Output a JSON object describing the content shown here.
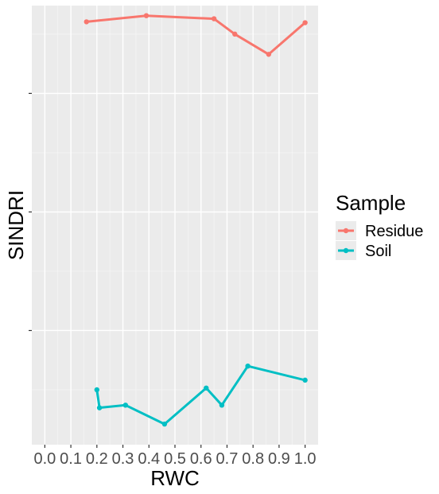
{
  "chart_data": {
    "type": "line",
    "xlabel": "RWC",
    "ylabel": "SINDRI",
    "xlim": [
      -0.05,
      1.05
    ],
    "ylim": [
      0,
      100
    ],
    "x_ticks": [
      0.0,
      0.1,
      0.2,
      0.3,
      0.4,
      0.5,
      0.6,
      0.7,
      0.8,
      0.9,
      1.0
    ],
    "x_tick_labels": [
      "0.0",
      "0.1",
      "0.2",
      "0.3",
      "0.4",
      "0.5",
      "0.6",
      "0.7",
      "0.8",
      "0.9",
      "1.0"
    ],
    "y_ticks": [
      26,
      53,
      80
    ],
    "y_tick_labels": [
      "",
      "",
      ""
    ],
    "grid": true,
    "legend_position": "right",
    "legend_title": "Sample",
    "series": [
      {
        "name": "Residue",
        "color": "#F8766D",
        "points": [
          {
            "x": 0.16,
            "y": 96.3
          },
          {
            "x": 0.39,
            "y": 97.7
          },
          {
            "x": 0.65,
            "y": 97.0
          },
          {
            "x": 0.73,
            "y": 93.5
          },
          {
            "x": 0.86,
            "y": 88.9
          },
          {
            "x": 1.0,
            "y": 96.1
          }
        ]
      },
      {
        "name": "Soil",
        "color": "#00BFC4",
        "points": [
          {
            "x": 0.2,
            "y": 12.5
          },
          {
            "x": 0.21,
            "y": 8.4
          },
          {
            "x": 0.31,
            "y": 9.0
          },
          {
            "x": 0.46,
            "y": 4.7
          },
          {
            "x": 0.62,
            "y": 12.9
          },
          {
            "x": 0.68,
            "y": 9.0
          },
          {
            "x": 0.78,
            "y": 17.9
          },
          {
            "x": 1.0,
            "y": 14.7
          }
        ]
      }
    ]
  }
}
